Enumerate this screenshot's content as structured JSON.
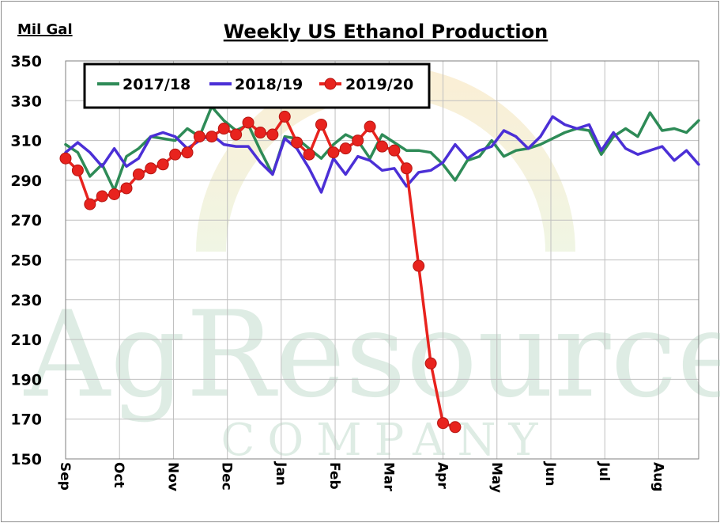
{
  "chart_data": {
    "type": "line",
    "title": "Weekly US Ethanol Production",
    "ylabel": "Mil Gal",
    "xlabel": "",
    "ylim": [
      150,
      350
    ],
    "yticks": [
      150,
      170,
      190,
      210,
      230,
      250,
      270,
      290,
      310,
      330,
      350
    ],
    "x_range": [
      0,
      52
    ],
    "x_ticks": [
      {
        "label": "Sep",
        "x": 0
      },
      {
        "label": "Oct",
        "x": 4.43
      },
      {
        "label": "Nov",
        "x": 8.86
      },
      {
        "label": "Dec",
        "x": 13.29
      },
      {
        "label": "Jan",
        "x": 17.71
      },
      {
        "label": "Feb",
        "x": 22.14
      },
      {
        "label": "Mar",
        "x": 26.57
      },
      {
        "label": "Apr",
        "x": 31.0
      },
      {
        "label": "May",
        "x": 35.43
      },
      {
        "label": "Jun",
        "x": 39.86
      },
      {
        "label": "Jul",
        "x": 44.29
      },
      {
        "label": "Aug",
        "x": 48.71
      }
    ],
    "grid": true,
    "legend_position": "top-left",
    "watermark": {
      "line1": "AgResource",
      "line2": "COMPANY"
    },
    "series": [
      {
        "name": "2017/18",
        "color": "#2e8b57",
        "marker": "none",
        "x": [
          0,
          1,
          2,
          3,
          4,
          5,
          6,
          7,
          8,
          9,
          10,
          11,
          12,
          13,
          14,
          15,
          16,
          17,
          18,
          19,
          20,
          21,
          22,
          23,
          24,
          25,
          26,
          27,
          28,
          29,
          30,
          31,
          32,
          33,
          34,
          35,
          36,
          37,
          38,
          39,
          40,
          41,
          42,
          43,
          44,
          45,
          46,
          47,
          48,
          49,
          50,
          51,
          52
        ],
        "values": [
          308,
          304,
          292,
          298,
          285,
          302,
          306,
          312,
          311,
          310,
          316,
          312,
          327,
          320,
          315,
          318,
          305,
          293,
          312,
          311,
          306,
          301,
          308,
          313,
          310,
          301,
          313,
          309,
          305,
          305,
          304,
          298,
          290,
          300,
          302,
          310,
          302,
          305,
          306,
          308,
          311,
          314,
          316,
          315,
          303,
          312,
          316,
          312,
          324,
          315,
          316,
          314,
          320
        ]
      },
      {
        "name": "2018/19",
        "color": "#4b2fd6",
        "marker": "none",
        "x": [
          0,
          1,
          2,
          3,
          4,
          5,
          6,
          7,
          8,
          9,
          10,
          11,
          12,
          13,
          14,
          15,
          16,
          17,
          18,
          19,
          20,
          21,
          22,
          23,
          24,
          25,
          26,
          27,
          28,
          29,
          30,
          31,
          32,
          33,
          34,
          35,
          36,
          37,
          38,
          39,
          40,
          41,
          42,
          43,
          44,
          45,
          46,
          47,
          48,
          49,
          50,
          51,
          52
        ],
        "values": [
          304,
          309,
          304,
          297,
          306,
          297,
          301,
          312,
          314,
          312,
          306,
          310,
          313,
          308,
          307,
          307,
          299,
          293,
          311,
          306,
          296,
          284,
          301,
          293,
          302,
          300,
          295,
          296,
          287,
          294,
          295,
          299,
          308,
          301,
          305,
          307,
          315,
          312,
          306,
          312,
          322,
          318,
          316,
          318,
          305,
          314,
          306,
          303,
          305,
          307,
          300,
          305,
          298
        ]
      },
      {
        "name": "2019/20",
        "color": "#e8231e",
        "marker": "circle",
        "x": [
          0,
          1,
          2,
          3,
          4,
          5,
          6,
          7,
          8,
          9,
          10,
          11,
          12,
          13,
          14,
          15,
          16,
          17,
          18,
          19,
          20,
          21,
          22,
          23,
          24,
          25,
          26,
          27,
          28,
          29,
          30,
          31,
          32
        ],
        "values": [
          301,
          295,
          278,
          282,
          283,
          286,
          293,
          296,
          298,
          303,
          304,
          312,
          312,
          316,
          313,
          319,
          314,
          313,
          322,
          309,
          303,
          318,
          304,
          306,
          310,
          317,
          307,
          305,
          296,
          247,
          198,
          168,
          166
        ]
      }
    ]
  }
}
